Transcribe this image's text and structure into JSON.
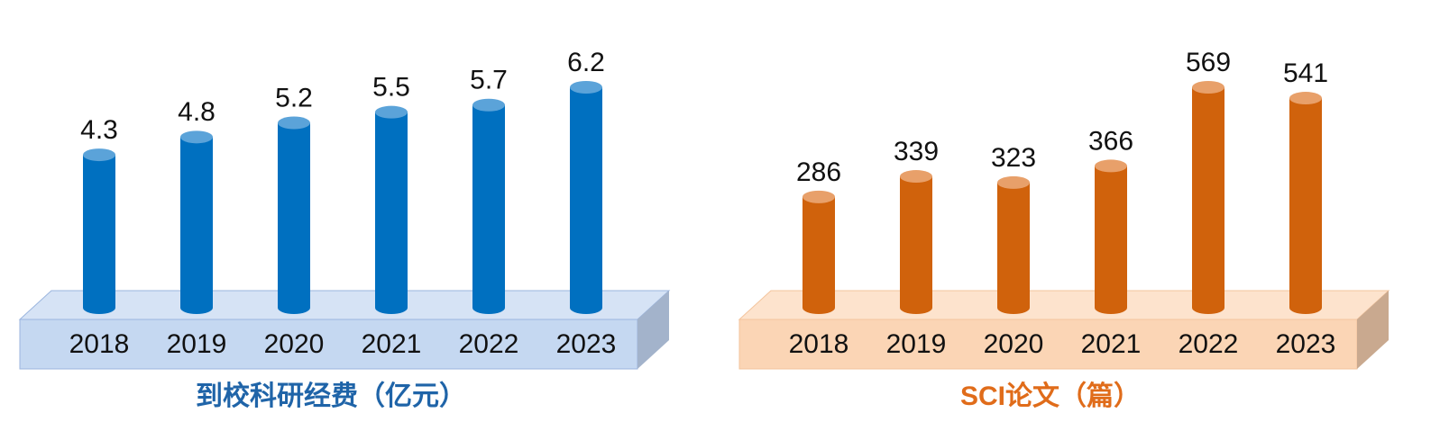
{
  "chart_data": [
    {
      "type": "bar",
      "title": "到校科研经费（亿元）",
      "categories": [
        "2018",
        "2019",
        "2020",
        "2021",
        "2022",
        "2023"
      ],
      "values": [
        4.3,
        4.8,
        5.2,
        5.5,
        5.7,
        6.2
      ],
      "color": "#0070c0"
    },
    {
      "type": "bar",
      "title": "SCI论文（篇）",
      "categories": [
        "2018",
        "2019",
        "2020",
        "2021",
        "2022",
        "2023"
      ],
      "values": [
        286,
        339,
        323,
        366,
        569,
        541
      ],
      "color": "#d0620c"
    }
  ]
}
